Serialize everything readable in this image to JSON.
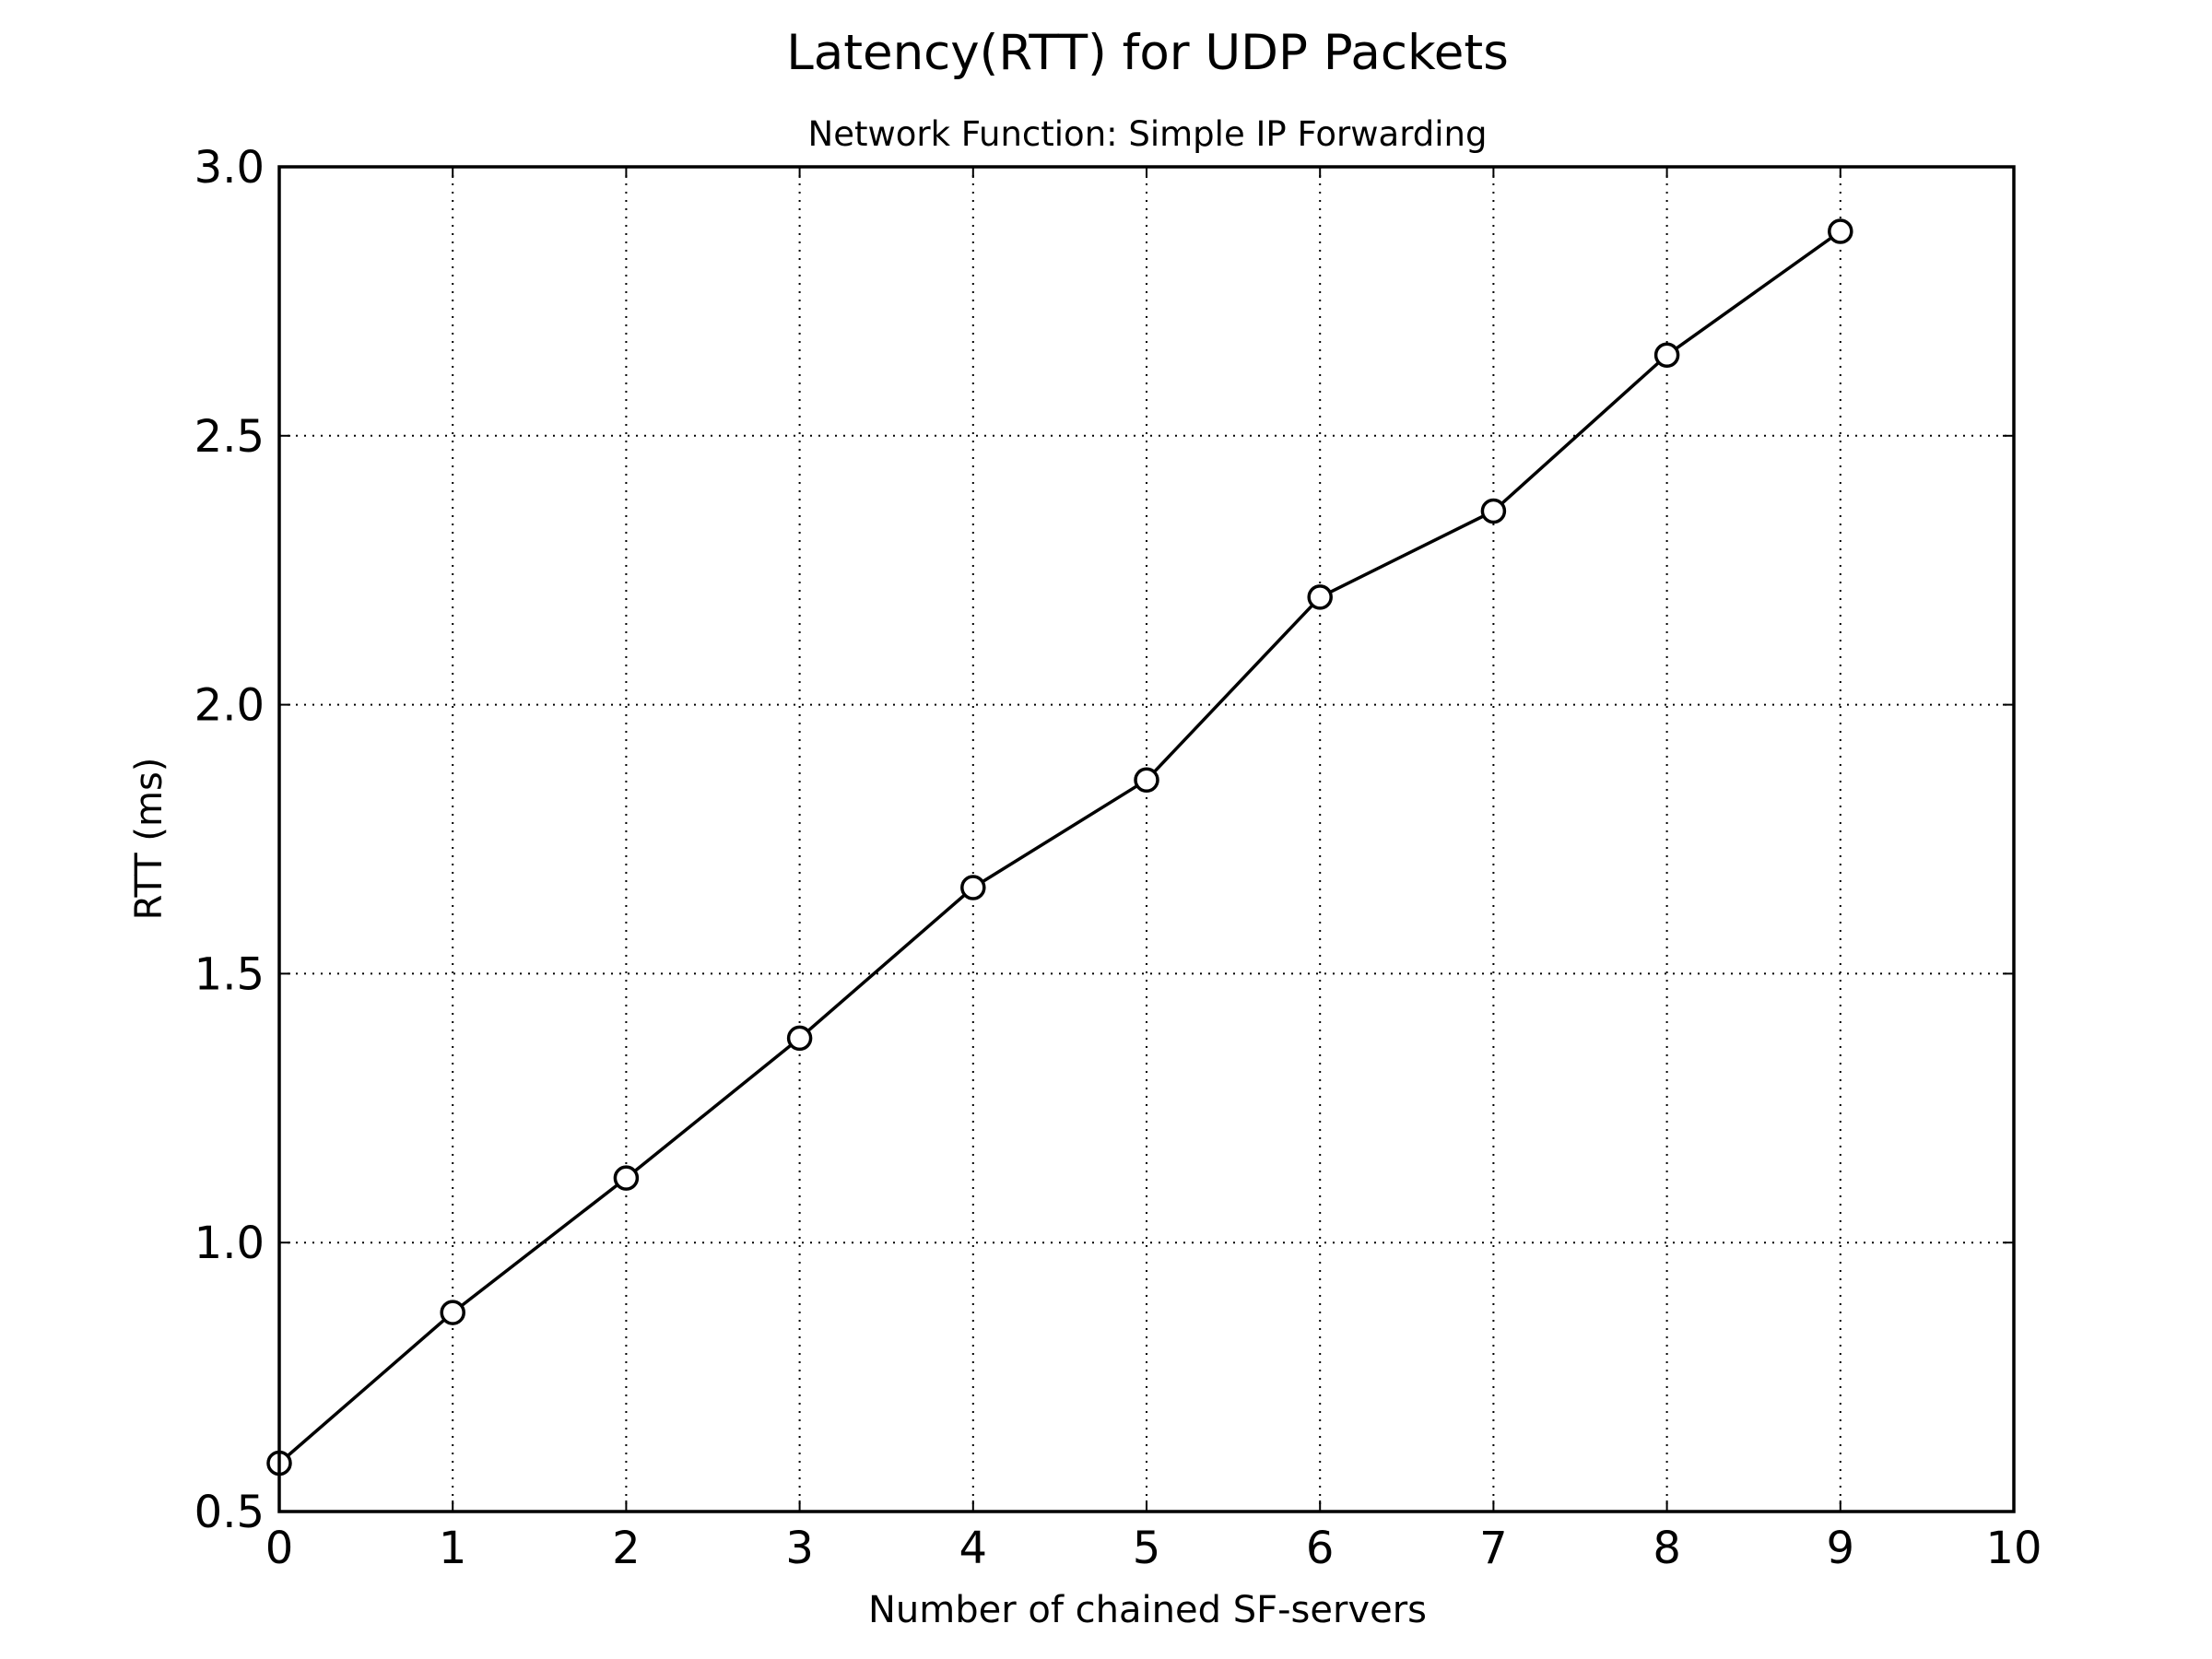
{
  "chart_data": {
    "type": "line",
    "title": "Latency(RTT) for UDP Packets",
    "subtitle": "Network Function: Simple IP Forwarding",
    "xlabel": "Number of chained SF-servers",
    "ylabel": "RTT (ms)",
    "xlim": [
      0,
      10
    ],
    "ylim": [
      0.5,
      3.0
    ],
    "xticks": [
      0,
      1,
      2,
      3,
      4,
      5,
      6,
      7,
      8,
      9,
      10
    ],
    "xtick_labels": [
      "0",
      "1",
      "2",
      "3",
      "4",
      "5",
      "6",
      "7",
      "8",
      "9",
      "10"
    ],
    "yticks": [
      0.5,
      1.0,
      1.5,
      2.0,
      2.5,
      3.0
    ],
    "ytick_labels": [
      "0.5",
      "1.0",
      "1.5",
      "2.0",
      "2.5",
      "3.0"
    ],
    "grid": true,
    "grid_style": "dotted",
    "line_color": "#000000",
    "marker": "open-circle",
    "series": [
      {
        "x": [
          0,
          1,
          2,
          3,
          4,
          5,
          6,
          7,
          8,
          9
        ],
        "y": [
          0.59,
          0.87,
          1.12,
          1.38,
          1.66,
          1.86,
          2.2,
          2.36,
          2.65,
          2.88
        ]
      }
    ]
  }
}
